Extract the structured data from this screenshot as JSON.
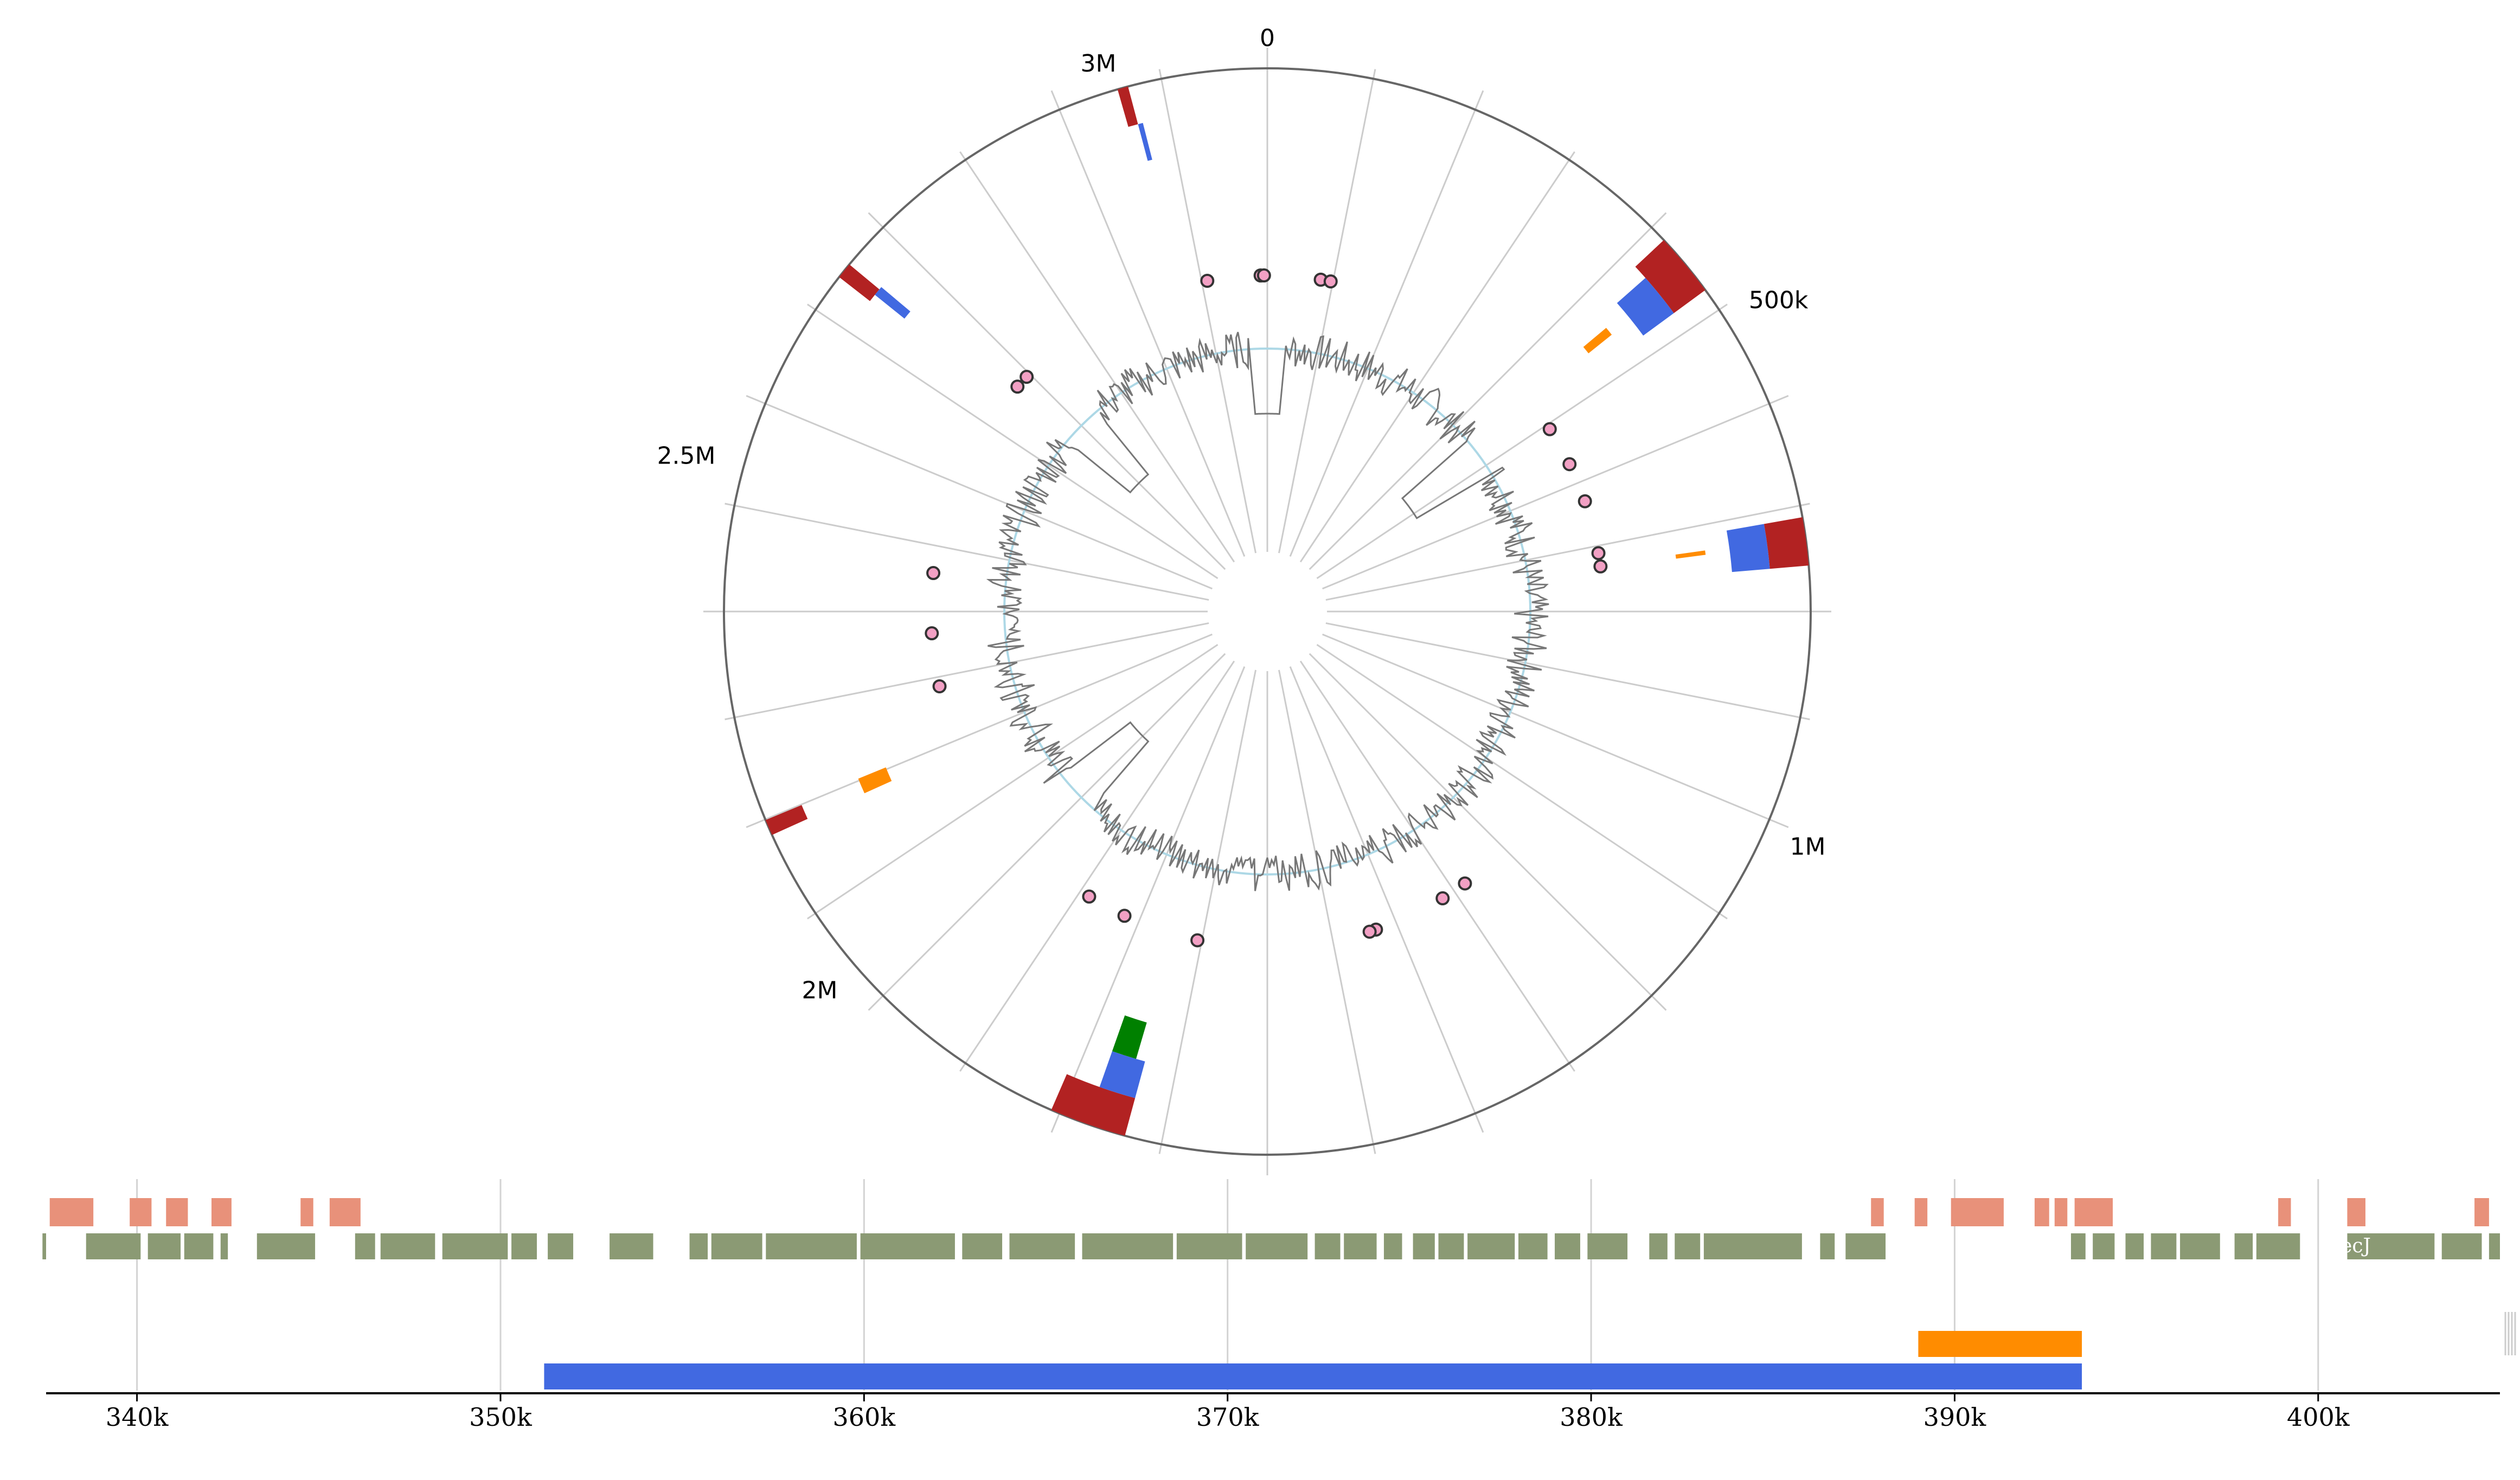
{
  "circular_view": {
    "genome_length": 3150000,
    "tick_labels": [
      {
        "pos": 0,
        "label": "0"
      },
      {
        "pos": 500000,
        "label": "500k"
      },
      {
        "pos": 1000000,
        "label": "1M"
      },
      {
        "pos": 2000000,
        "label": "2M"
      },
      {
        "pos": 2500000,
        "label": "2.5M"
      },
      {
        "pos": 3000000,
        "label": "3M"
      }
    ],
    "colors": {
      "red": "#b22222",
      "blue": "#4169e1",
      "orange": "#ff8c00",
      "green": "#008000",
      "dot_fill": "#f2a0c4",
      "dot_stroke": "#333333",
      "gc_line": "#777777",
      "gc_baseline": "#add8e6",
      "outline": "#666666",
      "spokes": "#cccccc"
    },
    "features": [
      {
        "track": "red",
        "start": 410000,
        "end": 470000
      },
      {
        "track": "blue",
        "start": 425000,
        "end": 470000
      },
      {
        "track": "orange",
        "start": 438000,
        "end": 448000
      },
      {
        "track": "red",
        "start": 700000,
        "end": 745000
      },
      {
        "track": "blue",
        "start": 700000,
        "end": 745000
      },
      {
        "track": "orange",
        "start": 718000,
        "end": 723000
      },
      {
        "track": "red",
        "start": 1708000,
        "end": 1780000
      },
      {
        "track": "blue",
        "start": 1708000,
        "end": 1745000
      },
      {
        "track": "green",
        "start": 1718000,
        "end": 1745000
      },
      {
        "track": "red",
        "start": 2150000,
        "end": 2165000
      },
      {
        "track": "orange",
        "start": 2150000,
        "end": 2168000
      },
      {
        "track": "red",
        "start": 2695000,
        "end": 2710000
      },
      {
        "track": "blue",
        "start": 2703000,
        "end": 2713000
      },
      {
        "track": "red",
        "start": 3010000,
        "end": 3020000
      },
      {
        "track": "blue",
        "start": 3020000,
        "end": 3025000
      }
    ],
    "dots": [
      3060000,
      3140000,
      3145000,
      80000,
      95000,
      500000,
      560000,
      620000,
      700000,
      720000,
      1260000,
      1300000,
      1410000,
      1420000,
      1680000,
      1795000,
      1855000,
      2250000,
      2330000,
      2420000,
      2730000,
      2750000
    ]
  },
  "linear_view": {
    "range": [
      337500,
      405000
    ],
    "axis_ticks": [
      {
        "pos": 340000,
        "label": "340k"
      },
      {
        "pos": 350000,
        "label": "350k"
      },
      {
        "pos": 360000,
        "label": "360k"
      },
      {
        "pos": 370000,
        "label": "370k"
      },
      {
        "pos": 380000,
        "label": "380k"
      },
      {
        "pos": 390000,
        "label": "390k"
      },
      {
        "pos": 400000,
        "label": "400k"
      }
    ],
    "colors": {
      "salmon": "#e8917a",
      "gene": "#8b9a74",
      "orange": "#ff8c00",
      "blue": "#4169e1",
      "grid": "#d3d3d3",
      "axis": "#000000"
    },
    "salmon_blocks": [
      [
        338000,
        338700
      ],
      [
        338400,
        339200
      ],
      [
        338500,
        339000
      ],
      [
        338600,
        339050
      ],
      [
        338650,
        339100
      ],
      [
        338700,
        339150
      ],
      [
        339000,
        339100
      ],
      [
        339050,
        339080
      ],
      [
        339080,
        339110
      ],
      [
        339110,
        339150
      ],
      [
        339100,
        339200
      ],
      [
        339120,
        339180
      ],
      [
        339000,
        339050
      ],
      [
        339010,
        339060
      ]
    ],
    "labeled_gene": {
      "start": 400800,
      "end": 403200,
      "label": "recJ"
    },
    "orange_bar": [
      389000,
      393500
    ],
    "blue_bar": [
      351200,
      393500
    ]
  }
}
